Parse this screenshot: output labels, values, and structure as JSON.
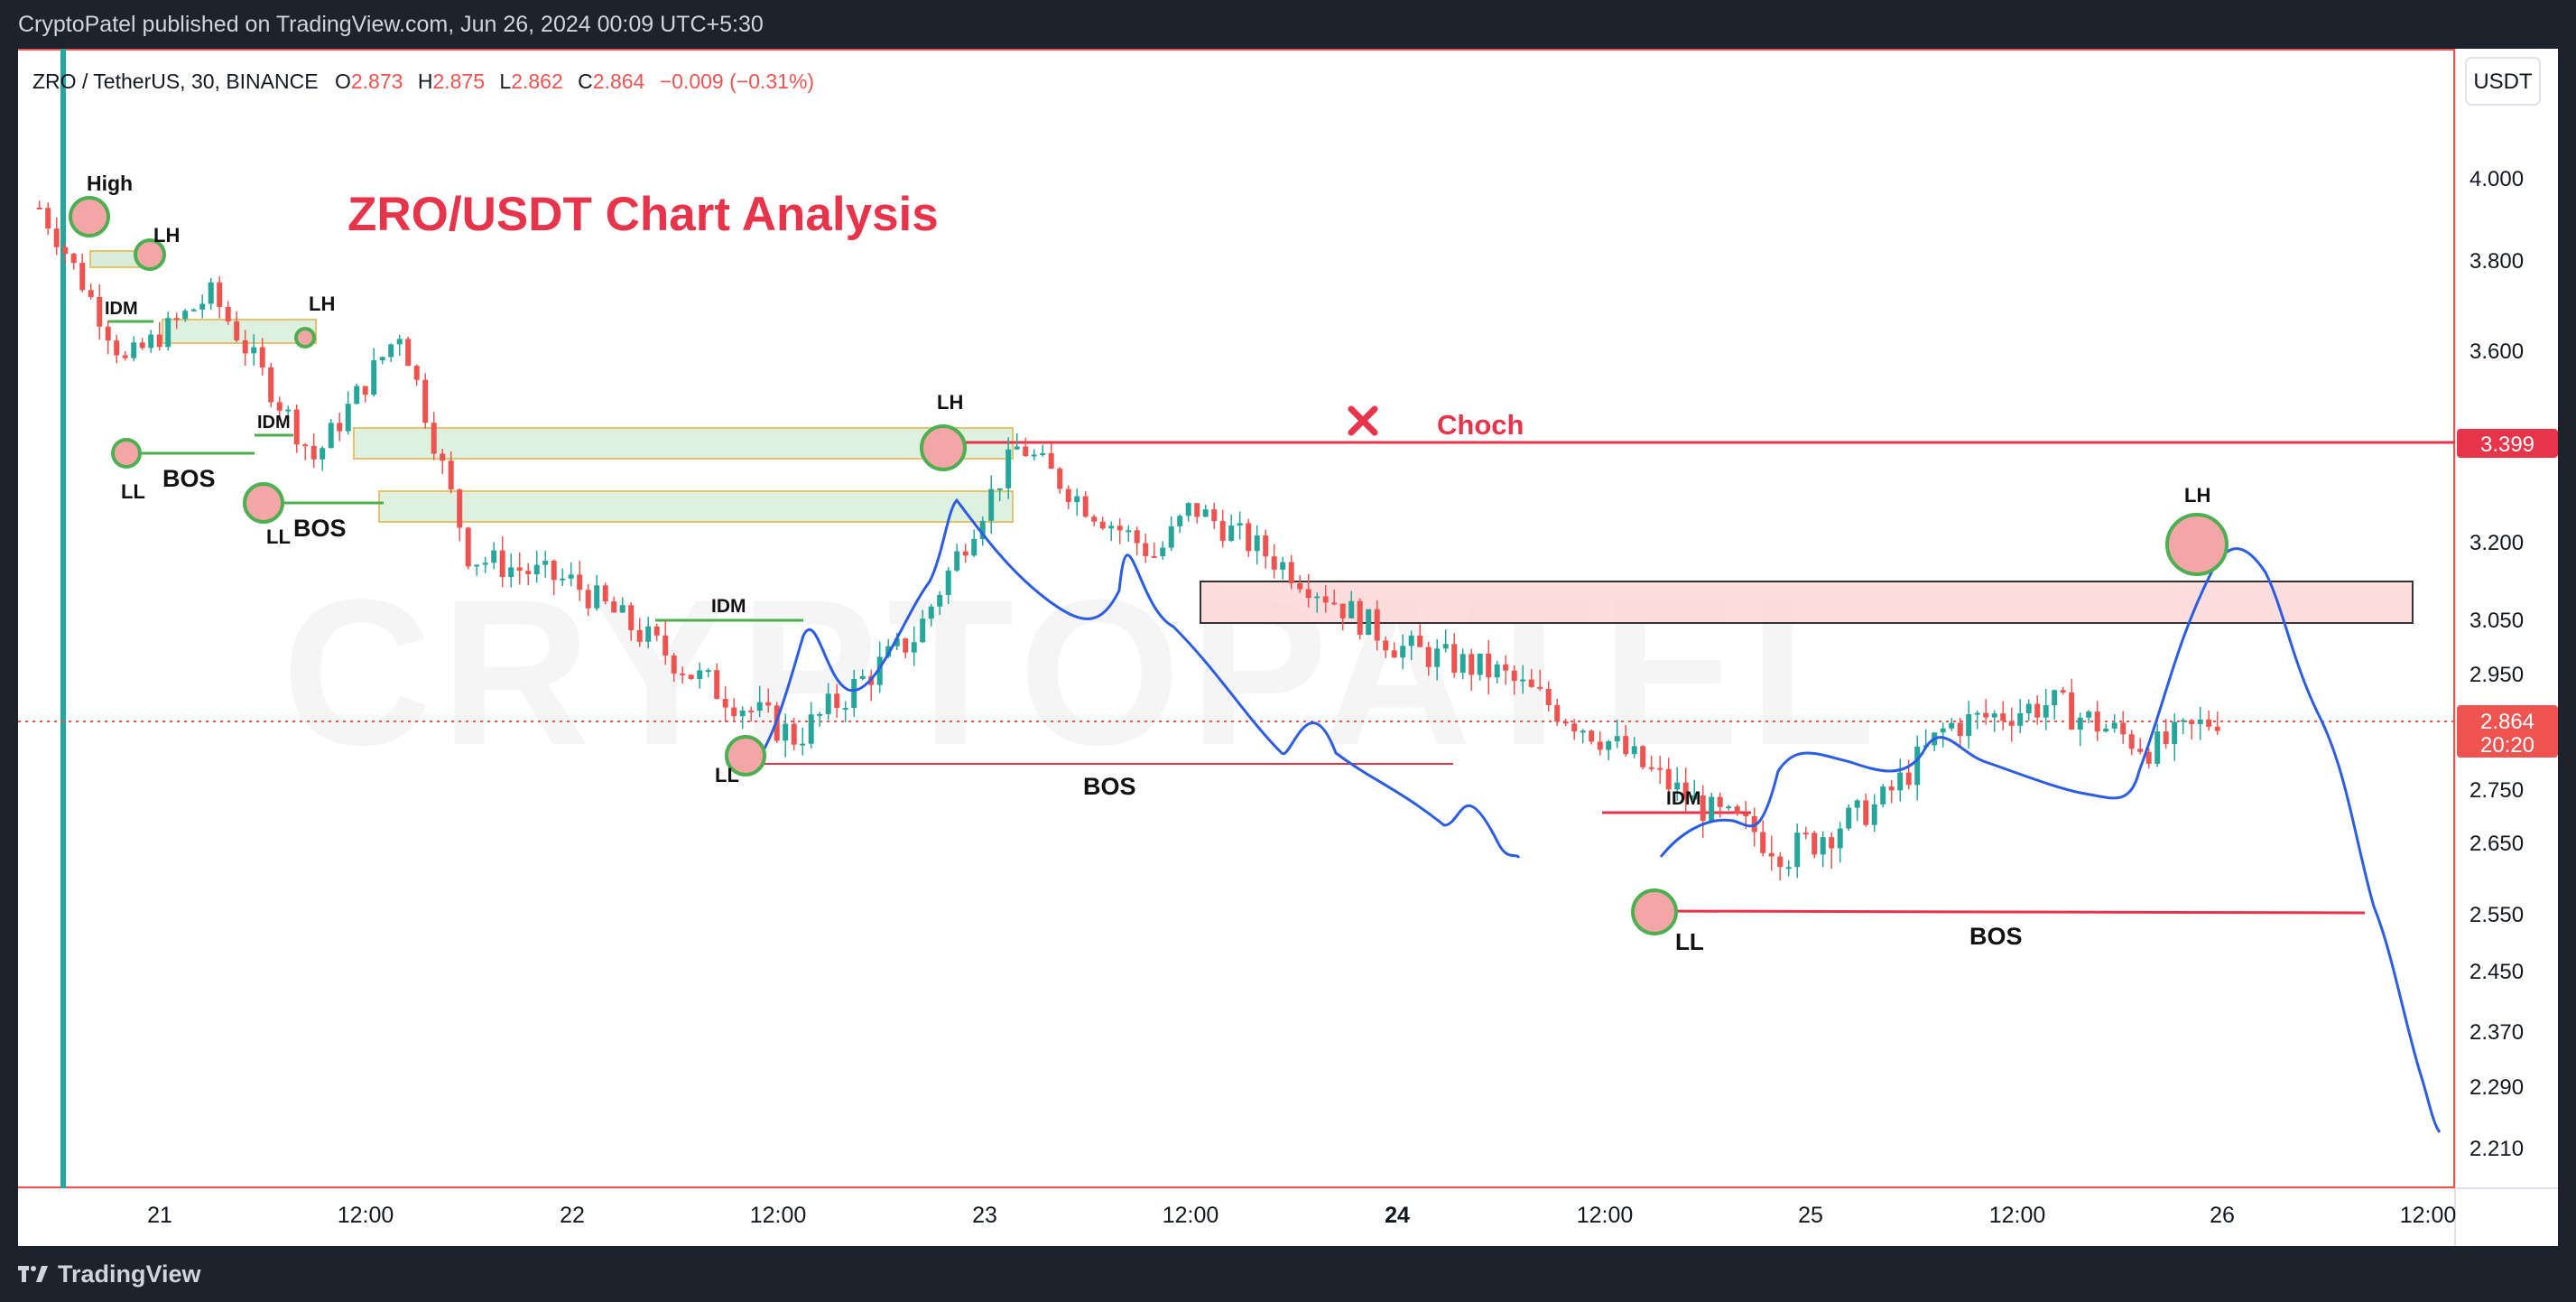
{
  "header": {
    "publisher_line": "CryptoPatel published on TradingView.com, Jun 26, 2024 00:09 UTC+5:30"
  },
  "footer": {
    "brand": "TradingView"
  },
  "legend": {
    "symbol": "ZRO / TetherUS, 30, BINANCE",
    "o_label": "O",
    "o_value": "2.873",
    "h_label": "H",
    "h_value": "2.875",
    "l_label": "L",
    "l_value": "2.862",
    "c_label": "C",
    "c_value": "2.864",
    "change": "−0.009 (−0.31%)"
  },
  "watermark": "CRYPTOPATEL",
  "colors": {
    "bull": "#26a69a",
    "bear": "#ef5350",
    "accent_red": "#e8344b",
    "projection": "#2b5ce6",
    "structure_green": "#4caf50"
  },
  "chart_data": {
    "type": "candlestick",
    "title": "ZRO/USDT Chart Analysis",
    "currency": "USDT",
    "y_axis_ticks": [
      "4.000",
      "3.800",
      "3.600",
      "3.200",
      "3.050",
      "2.950",
      "2.750",
      "2.650",
      "2.550",
      "2.450",
      "2.370",
      "2.290",
      "2.210"
    ],
    "x_axis_ticks": [
      "21",
      "12:00",
      "22",
      "12:00",
      "23",
      "12:00",
      "24",
      "12:00",
      "25",
      "12:00",
      "26",
      "12:00"
    ],
    "last_price": "2.864",
    "countdown": "20:20",
    "choch_level": "3.399",
    "ohlc": {
      "open": 2.873,
      "high": 2.875,
      "low": 2.862,
      "close": 2.864
    },
    "price_path": [
      [
        "Jun 20 17:00",
        3.9
      ],
      [
        "Jun 20 22:00",
        3.55
      ],
      [
        "Jun 21 03:00",
        3.7
      ],
      [
        "Jun 21 09:00",
        3.35
      ],
      [
        "Jun 21 14:00",
        3.62
      ],
      [
        "Jun 21 18:00",
        3.15
      ],
      [
        "Jun 22 00:00",
        3.1
      ],
      [
        "Jun 22 07:00",
        2.93
      ],
      [
        "Jun 22 13:00",
        2.82
      ],
      [
        "Jun 22 20:00",
        3.0
      ],
      [
        "Jun 23 02:00",
        3.38
      ],
      [
        "Jun 23 06:00",
        3.25
      ],
      [
        "Jun 23 10:00",
        3.15
      ],
      [
        "Jun 23 12:00",
        3.25
      ],
      [
        "Jun 23 18:00",
        3.12
      ],
      [
        "Jun 24 00:00",
        2.98
      ],
      [
        "Jun 24 06:00",
        2.93
      ],
      [
        "Jun 24 12:00",
        2.82
      ],
      [
        "Jun 24 18:00",
        2.69
      ],
      [
        "Jun 24 23:00",
        2.62
      ],
      [
        "Jun 25 04:00",
        2.7
      ],
      [
        "Jun 25 08:00",
        2.84
      ],
      [
        "Jun 25 14:00",
        2.88
      ],
      [
        "Jun 25 20:00",
        2.8
      ],
      [
        "Jun 26 00:00",
        2.86
      ]
    ],
    "projection_path": [
      [
        "Jun 25 21:00",
        2.86
      ],
      [
        "Jun 26 00:00",
        3.16
      ],
      [
        "Jun 26 04:00",
        2.95
      ],
      [
        "Jun 26 10:00",
        2.6
      ],
      [
        "Jun 26 15:00",
        2.21
      ]
    ],
    "annotations": [
      {
        "text": "High",
        "price": 3.9
      },
      {
        "text": "LH",
        "price": 3.8
      },
      {
        "text": "LH",
        "price": 3.62
      },
      {
        "text": "IDM",
        "price": 3.68
      },
      {
        "text": "LL",
        "price": 3.37
      },
      {
        "text": "BOS",
        "price": 3.33
      },
      {
        "text": "IDM",
        "price": 3.36
      },
      {
        "text": "LL",
        "price": 3.24
      },
      {
        "text": "BOS",
        "price": 3.19
      },
      {
        "text": "LH",
        "price": 3.44
      },
      {
        "text": "Choch",
        "price": 3.399
      },
      {
        "text": "IDM",
        "price": 3.02
      },
      {
        "text": "LL",
        "price": 2.8
      },
      {
        "text": "BOS",
        "price": 2.76
      },
      {
        "text": "IDM",
        "price": 2.71
      },
      {
        "text": "LL",
        "price": 2.56
      },
      {
        "text": "BOS",
        "price": 2.54
      },
      {
        "text": "LH",
        "price": 3.23
      }
    ]
  }
}
